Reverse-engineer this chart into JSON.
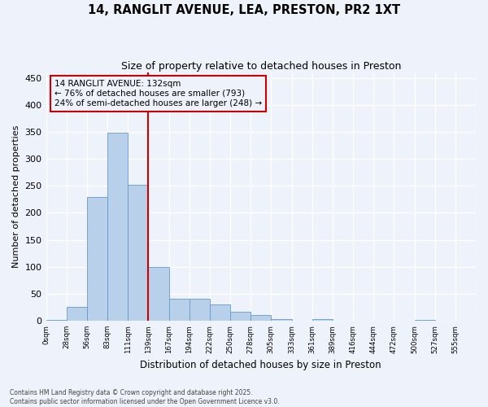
{
  "title": "14, RANGLIT AVENUE, LEA, PRESTON, PR2 1XT",
  "subtitle": "Size of property relative to detached houses in Preston",
  "xlabel": "Distribution of detached houses by size in Preston",
  "ylabel": "Number of detached properties",
  "bar_values": [
    2,
    25,
    230,
    348,
    252,
    100,
    41,
    41,
    30,
    16,
    10,
    3,
    0,
    3,
    0,
    0,
    0,
    0,
    2,
    0,
    0
  ],
  "bar_labels": [
    "0sqm",
    "28sqm",
    "56sqm",
    "83sqm",
    "111sqm",
    "139sqm",
    "167sqm",
    "194sqm",
    "222sqm",
    "250sqm",
    "278sqm",
    "305sqm",
    "333sqm",
    "361sqm",
    "389sqm",
    "416sqm",
    "444sqm",
    "472sqm",
    "500sqm",
    "527sqm",
    "555sqm"
  ],
  "bar_color": "#b8d0ea",
  "bar_edge_color": "#6699cc",
  "vline_color": "#cc0000",
  "annotation_text": "14 RANGLIT AVENUE: 132sqm\n← 76% of detached houses are smaller (793)\n24% of semi-detached houses are larger (248) →",
  "annotation_box_color": "#cc0000",
  "annotation_text_color": "#000000",
  "ylim": [
    0,
    460
  ],
  "yticks": [
    0,
    50,
    100,
    150,
    200,
    250,
    300,
    350,
    400,
    450
  ],
  "background_color": "#eef2fb",
  "grid_color": "#ffffff",
  "footer": "Contains HM Land Registry data © Crown copyright and database right 2025.\nContains public sector information licensed under the Open Government Licence v3.0."
}
